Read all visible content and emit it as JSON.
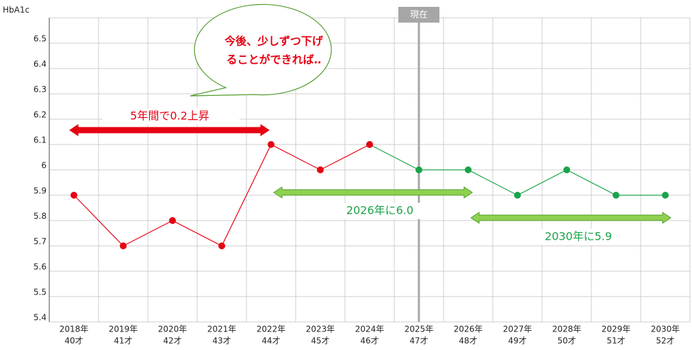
{
  "chart_data": {
    "type": "line",
    "y_label": "HbA1c",
    "categories": [
      "2018年",
      "2019年",
      "2020年",
      "2021年",
      "2022年",
      "2023年",
      "2024年",
      "2025年",
      "2026年",
      "2027年",
      "2028年",
      "2029年",
      "2030年"
    ],
    "category_sublabels": [
      "40才",
      "41才",
      "42才",
      "43才",
      "44才",
      "45才",
      "46才",
      "47才",
      "48才",
      "49才",
      "50才",
      "51才",
      "52才"
    ],
    "series": [
      {
        "color": "#e60012",
        "values": [
          5.9,
          5.7,
          5.8,
          5.7,
          6.1,
          6.0,
          6.1,
          null,
          null,
          null,
          null,
          null,
          null
        ]
      },
      {
        "color": "#1aa34a",
        "values": [
          null,
          null,
          null,
          null,
          null,
          null,
          6.1,
          6.0,
          6.0,
          5.9,
          6.0,
          5.9,
          5.9
        ]
      }
    ],
    "ylim": [
      5.4,
      6.6
    ],
    "yticks": [
      5.4,
      5.5,
      5.6,
      5.7,
      5.8,
      5.9,
      6,
      6.1,
      6.2,
      6.3,
      6.4,
      6.5
    ],
    "grid": true,
    "current_label": "現在",
    "callout": [
      "今後、少しずつ下げ",
      "ることができれば‥"
    ],
    "annotations": [
      "5年間で0.2上昇",
      "2026年に6.0",
      "2030年に5.9"
    ]
  }
}
